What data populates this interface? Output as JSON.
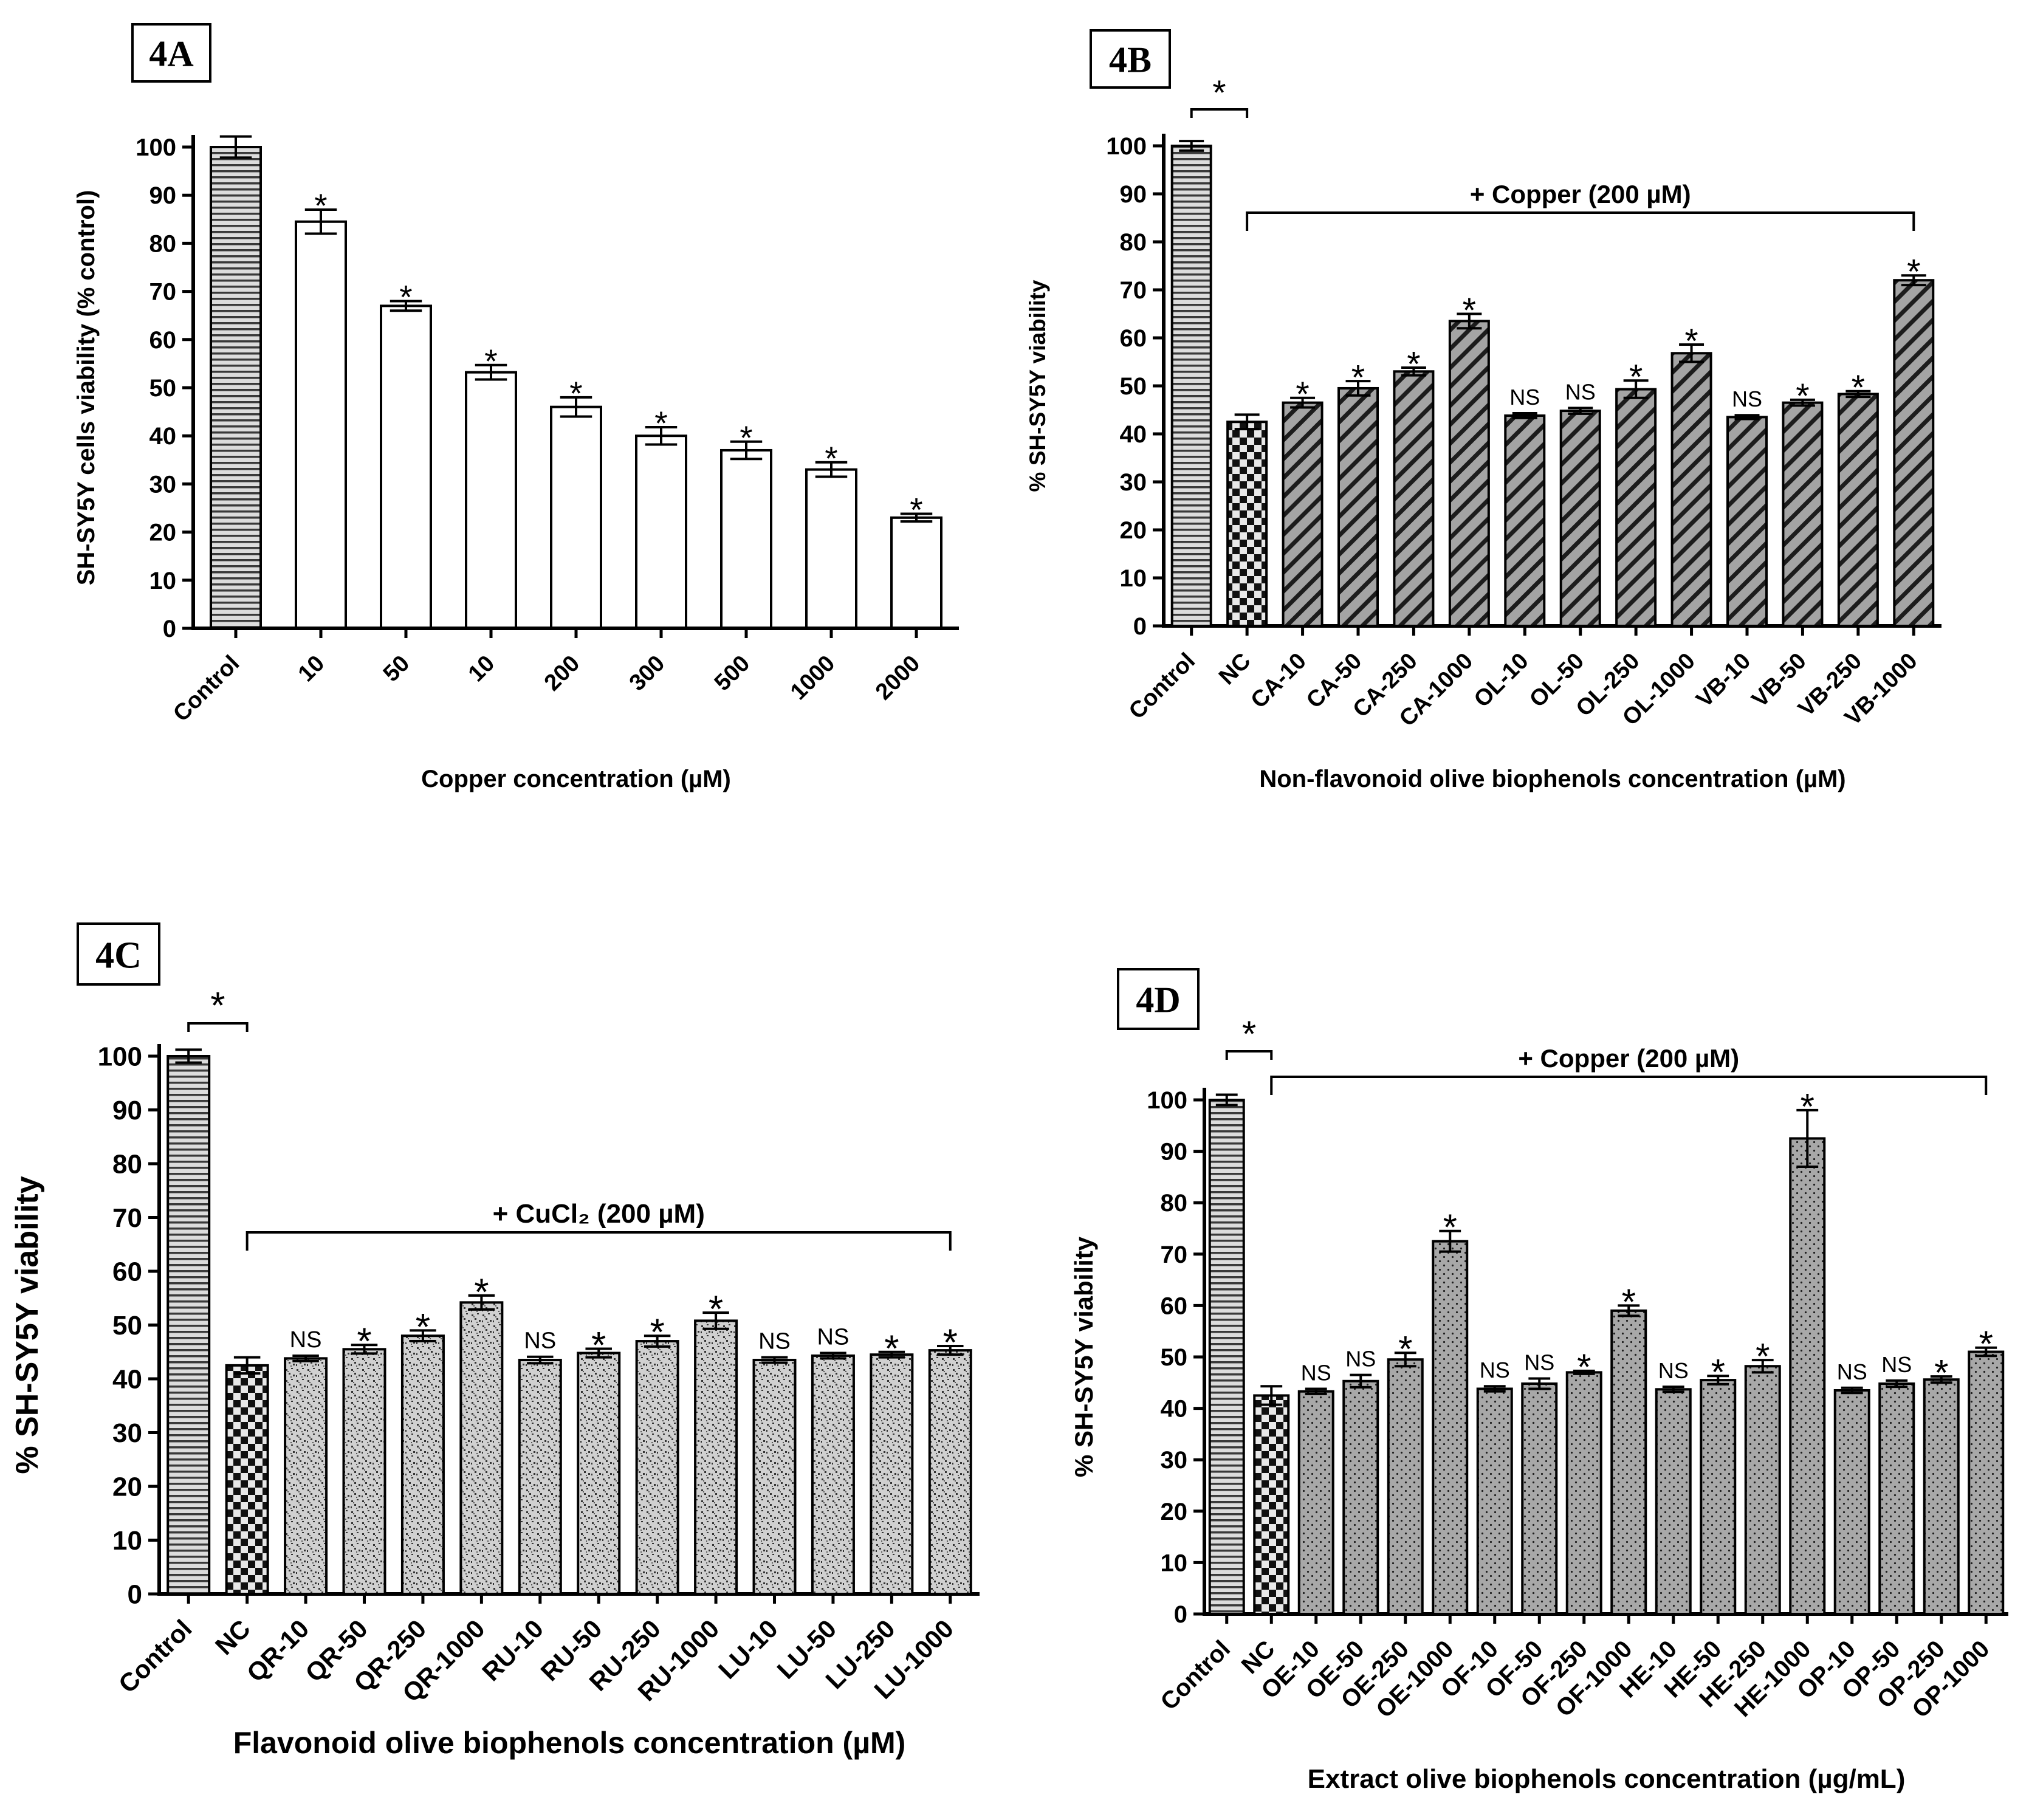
{
  "chart_data": [
    {
      "id": "4A",
      "panel_label": "4A",
      "type": "bar",
      "categories": [
        "Control",
        "10",
        "50",
        "10",
        "200",
        "300",
        "500",
        "1000",
        "2000"
      ],
      "values": [
        100,
        84.5,
        67,
        53.2,
        46,
        40,
        37,
        33,
        23
      ],
      "errors": [
        2.2,
        2.5,
        1.0,
        1.5,
        2.0,
        1.8,
        1.8,
        1.5,
        0.8
      ],
      "significance": [
        "",
        "*",
        "*",
        "*",
        "*",
        "*",
        "*",
        "*",
        "*"
      ],
      "fills": [
        "hstripe",
        "gray",
        "gray",
        "gray",
        "gray",
        "gray",
        "gray",
        "gray",
        "gray"
      ],
      "xlabel": "Copper concentration (µM)",
      "ylabel": "SH-SY5Y cells viability (% control)",
      "ylim": [
        0,
        100
      ],
      "yticks": [
        0,
        10,
        20,
        30,
        40,
        50,
        60,
        70,
        80,
        90,
        100
      ],
      "bracket_label": "",
      "control_star": ""
    },
    {
      "id": "4B",
      "panel_label": "4B",
      "type": "bar",
      "categories": [
        "Control",
        "NC",
        "CA-10",
        "CA-50",
        "CA-250",
        "CA-1000",
        "OL-10",
        "OL-50",
        "OL-250",
        "OL-1000",
        "VB-10",
        "VB-50",
        "VB-250",
        "VB-1000"
      ],
      "values": [
        100,
        42.5,
        46.5,
        49.5,
        53,
        63.5,
        43.8,
        44.8,
        49.3,
        56.8,
        43.5,
        46.5,
        48.3,
        72
      ],
      "errors": [
        1.0,
        1.5,
        1.0,
        1.5,
        0.8,
        1.5,
        0.5,
        0.6,
        1.8,
        1.8,
        0.4,
        0.6,
        0.6,
        1.0
      ],
      "significance": [
        "",
        "",
        "*",
        "*",
        "*",
        "*",
        "NS",
        "NS",
        "*",
        "*",
        "NS",
        "*",
        "*",
        "*"
      ],
      "fills": [
        "hstripe",
        "checker",
        "diag",
        "diag",
        "diag",
        "diag",
        "diag",
        "diag",
        "diag",
        "diag",
        "diag",
        "diag",
        "diag",
        "diag"
      ],
      "xlabel": "Non-flavonoid olive biophenols concentration (µM)",
      "ylabel": "% SH-SY5Y viability",
      "ylim": [
        0,
        100
      ],
      "yticks": [
        0,
        10,
        20,
        30,
        40,
        50,
        60,
        70,
        80,
        90,
        100
      ],
      "bracket_label": "+ Copper (200 µM)",
      "control_star": "*"
    },
    {
      "id": "4C",
      "panel_label": "4C",
      "type": "bar",
      "categories": [
        "Control",
        "NC",
        "QR-10",
        "QR-50",
        "QR-250",
        "QR-1000",
        "RU-10",
        "RU-50",
        "RU-250",
        "RU-1000",
        "LU-10",
        "LU-50",
        "LU-250",
        "LU-1000"
      ],
      "values": [
        100,
        42.5,
        43.8,
        45.5,
        48,
        54.2,
        43.5,
        44.8,
        47,
        50.8,
        43.5,
        44.3,
        44.5,
        45.3
      ],
      "errors": [
        1.2,
        1.5,
        0.5,
        0.8,
        1.0,
        1.3,
        0.6,
        0.8,
        1.0,
        1.5,
        0.5,
        0.5,
        0.5,
        0.8
      ],
      "significance": [
        "",
        "",
        "NS",
        "*",
        "*",
        "*",
        "NS",
        "*",
        "*",
        "*",
        "NS",
        "NS",
        "*",
        "*"
      ],
      "fills": [
        "hstripe",
        "checker",
        "speckle",
        "speckle",
        "speckle",
        "speckle",
        "speckle",
        "speckle",
        "speckle",
        "speckle",
        "speckle",
        "speckle",
        "speckle",
        "speckle"
      ],
      "xlabel": "Flavonoid olive biophenols concentration (µM)",
      "ylabel": "% SH-SY5Y viability",
      "ylim": [
        0,
        100
      ],
      "yticks": [
        0,
        10,
        20,
        30,
        40,
        50,
        60,
        70,
        80,
        90,
        100
      ],
      "bracket_label": "+ CuCl₂ (200 µM)",
      "control_star": "*"
    },
    {
      "id": "4D",
      "panel_label": "4D",
      "type": "bar",
      "categories": [
        "Control",
        "NC",
        "OE-10",
        "OE-50",
        "OE-250",
        "OE-1000",
        "OF-10",
        "OF-50",
        "OF-250",
        "OF-1000",
        "HE-10",
        "HE-50",
        "HE-250",
        "HE-1000",
        "OP-10",
        "OP-50",
        "OP-250",
        "OP-1000"
      ],
      "values": [
        100,
        42.5,
        43.3,
        45.3,
        49.5,
        72.5,
        43.8,
        44.8,
        47,
        59,
        43.7,
        45.5,
        48.2,
        92.5,
        43.5,
        44.8,
        45.6,
        51
      ],
      "errors": [
        1.0,
        1.8,
        0.5,
        1.2,
        1.3,
        2.0,
        0.5,
        1.0,
        0.3,
        1.0,
        0.5,
        0.8,
        1.2,
        5.5,
        0.5,
        0.6,
        0.6,
        0.8
      ],
      "significance": [
        "",
        "",
        "NS",
        "NS",
        "*",
        "*",
        "NS",
        "NS",
        "*",
        "*",
        "NS",
        "*",
        "*",
        "*",
        "NS",
        "NS",
        "*",
        "*"
      ],
      "fills": [
        "hstripe",
        "checker",
        "dotted",
        "dotted",
        "dotted",
        "dotted",
        "dotted",
        "dotted",
        "dotted",
        "dotted",
        "dotted",
        "dotted",
        "dotted",
        "dotted",
        "dotted",
        "dotted",
        "dotted",
        "dotted"
      ],
      "xlabel": "Extract olive biophenols concentration (µg/mL)",
      "ylabel": "% SH-SY5Y viability",
      "ylim": [
        0,
        100
      ],
      "yticks": [
        0,
        10,
        20,
        30,
        40,
        50,
        60,
        70,
        80,
        90,
        100
      ],
      "bracket_label": "+ Copper (200 µM)",
      "control_star": "*"
    }
  ]
}
